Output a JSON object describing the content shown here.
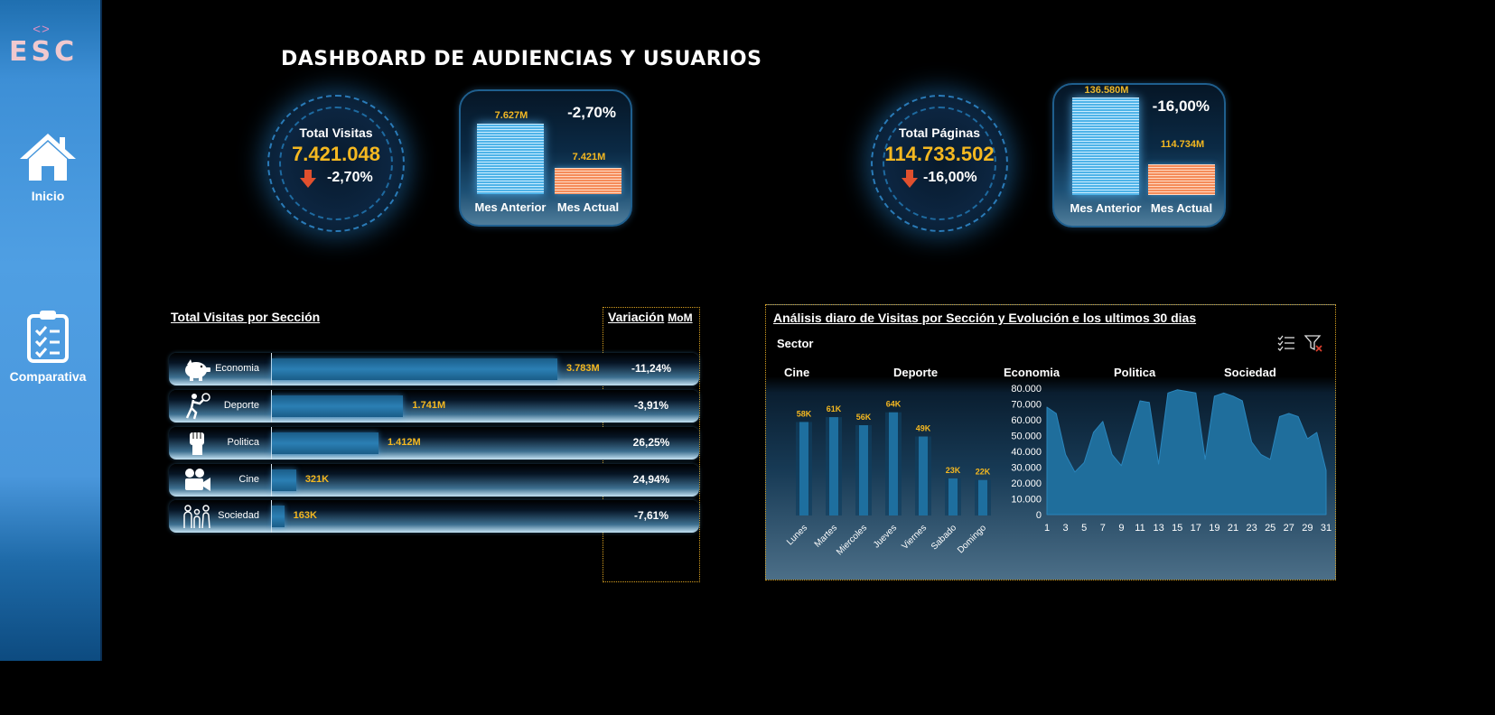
{
  "sidebar": {
    "logo_code": "<>",
    "logo_text": "ESC",
    "items": [
      {
        "label": "Inicio",
        "icon": "home-icon"
      },
      {
        "label": "Comparativa",
        "icon": "clipboard-checklist-icon"
      }
    ]
  },
  "page_title": "DASHBOARD DE AUDIENCIAS Y USUARIOS",
  "kpis": [
    {
      "label": "Total Visitas",
      "value": "7.421.048",
      "variation": "-2,70%",
      "comparison": {
        "pct": "-2,70%",
        "prev_label": "7.627M",
        "curr_label": "7.421M",
        "prev_value": 7.627,
        "curr_value": 7.421,
        "prev_name": "Mes Anterior",
        "curr_name": "Mes Actual"
      }
    },
    {
      "label": "Total Páginas",
      "value": "114.733.502",
      "variation": "-16,00%",
      "comparison": {
        "pct": "-16,00%",
        "prev_label": "136.580M",
        "curr_label": "114.734M",
        "prev_value": 136.58,
        "curr_value": 114.734,
        "prev_name": "Mes Anterior",
        "curr_name": "Mes Actual"
      }
    }
  ],
  "sections": {
    "title": "Total Visitas por Sección",
    "variation_title": "Variación",
    "variation_sub": "MoM",
    "rows": [
      {
        "name": "Economia",
        "label": "3.783M",
        "value": 3.783,
        "variation": "-11,24%",
        "icon": "piggy-bank-icon"
      },
      {
        "name": "Deporte",
        "label": "1.741M",
        "value": 1.741,
        "variation": "-3,91%",
        "icon": "tennis-player-icon"
      },
      {
        "name": "Politica",
        "label": "1.412M",
        "value": 1.412,
        "variation": "26,25%",
        "icon": "raised-fist-icon"
      },
      {
        "name": "Cine",
        "label": "321K",
        "value": 0.321,
        "variation": "24,94%",
        "icon": "movie-camera-icon"
      },
      {
        "name": "Sociedad",
        "label": "163K",
        "value": 0.163,
        "variation": "-7,61%",
        "icon": "family-icon"
      }
    ]
  },
  "daily": {
    "title": "Análisis diaro de Visitas por Sección  y Evolución e los ultimos 30 dias",
    "slicer_title": "Sector",
    "slicer_items": [
      "Cine",
      "Deporte",
      "Economia",
      "Politica",
      "Sociedad"
    ],
    "colors": {
      "accent": "#f5b820",
      "bar": "#1e6f9f",
      "area": "#1f6e9c"
    }
  },
  "chart_data": [
    {
      "type": "bar",
      "categories": [
        "Lunes",
        "Martes",
        "Miercoles",
        "Jueves",
        "Viernes",
        "Sabado",
        "Domingo"
      ],
      "values": [
        58,
        61,
        56,
        64,
        49,
        23,
        22
      ],
      "labels": [
        "58K",
        "61K",
        "56K",
        "64K",
        "49K",
        "23K",
        "22K"
      ],
      "ylim": [
        0,
        70
      ]
    },
    {
      "type": "area",
      "x": [
        1,
        2,
        3,
        4,
        5,
        6,
        7,
        8,
        9,
        10,
        11,
        12,
        13,
        14,
        15,
        16,
        17,
        18,
        19,
        20,
        21,
        22,
        23,
        24,
        25,
        26,
        27,
        28,
        29,
        30,
        31
      ],
      "values": [
        68000,
        64000,
        38000,
        27000,
        33000,
        52000,
        59000,
        38000,
        31000,
        52000,
        72000,
        71000,
        32000,
        77000,
        79000,
        78000,
        77000,
        35000,
        75000,
        77000,
        75000,
        72000,
        46000,
        38000,
        35000,
        62000,
        64000,
        62000,
        48000,
        52000,
        28000
      ],
      "yticks": [
        "80.000",
        "70.000",
        "60.000",
        "50.000",
        "40.000",
        "30.000",
        "20.000",
        "10.000",
        "0"
      ],
      "xticks": [
        "1",
        "3",
        "5",
        "7",
        "9",
        "11",
        "13",
        "15",
        "17",
        "19",
        "21",
        "23",
        "25",
        "27",
        "29",
        "31"
      ],
      "ylim": [
        0,
        80000
      ]
    }
  ]
}
